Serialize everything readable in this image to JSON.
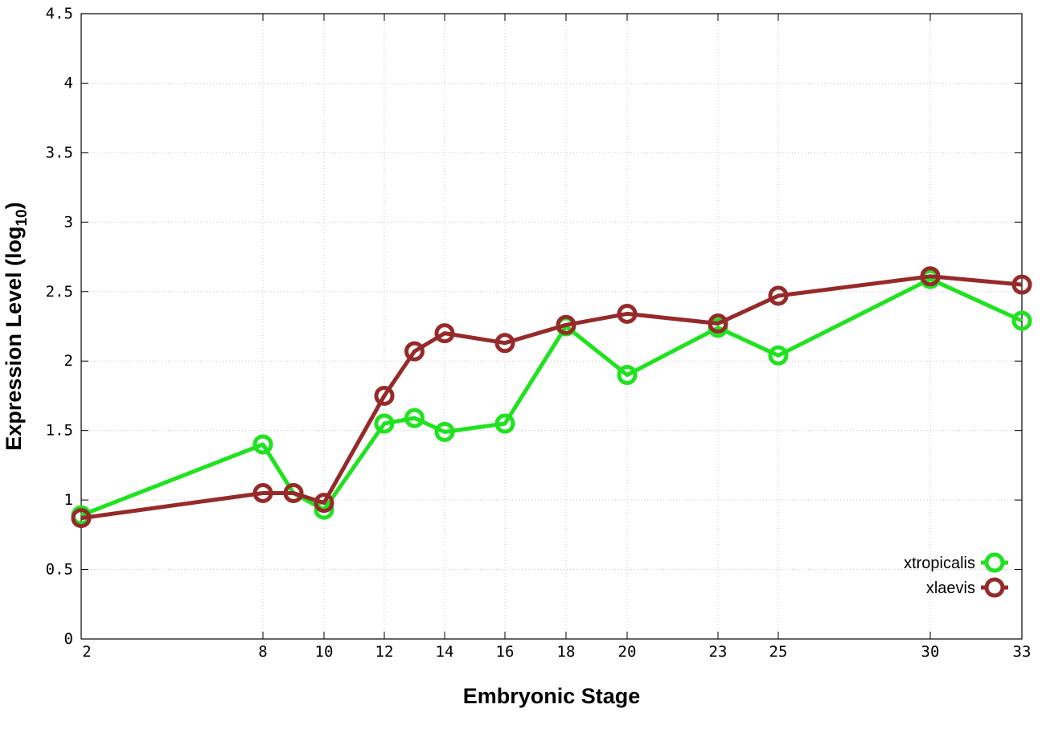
{
  "chart_data": {
    "type": "line",
    "xlabel": "Embryonic Stage",
    "ylabel": {
      "main": "Expression Level (log",
      "sub": "10",
      "tail": ")"
    },
    "x_ticks": [
      "2",
      "8",
      "10",
      "12",
      "14",
      "16",
      "18",
      "20",
      "23",
      "25",
      "30",
      "33"
    ],
    "y_ticks": [
      "0",
      "0.5",
      "1",
      "1.5",
      "2",
      "2.5",
      "3",
      "3.5",
      "4",
      "4.5"
    ],
    "ylim": [
      0,
      4.5
    ],
    "x_scale": "ordinal-spaced",
    "grid": true,
    "legend_position": "bottom-right",
    "x": [
      2,
      8,
      9,
      10,
      12,
      13,
      14,
      16,
      18,
      20,
      23,
      25,
      30,
      33
    ],
    "series": [
      {
        "name": "xtropicalis",
        "color": "#1ee31e",
        "values": [
          0.89,
          1.4,
          1.05,
          0.93,
          1.55,
          1.59,
          1.49,
          1.55,
          2.25,
          1.9,
          2.24,
          2.04,
          2.59,
          2.29
        ]
      },
      {
        "name": "xlaevis",
        "color": "#962a2a",
        "values": [
          0.87,
          1.05,
          1.05,
          0.98,
          1.75,
          2.07,
          2.2,
          2.13,
          2.26,
          2.34,
          2.27,
          2.47,
          2.61,
          2.55
        ]
      }
    ]
  }
}
